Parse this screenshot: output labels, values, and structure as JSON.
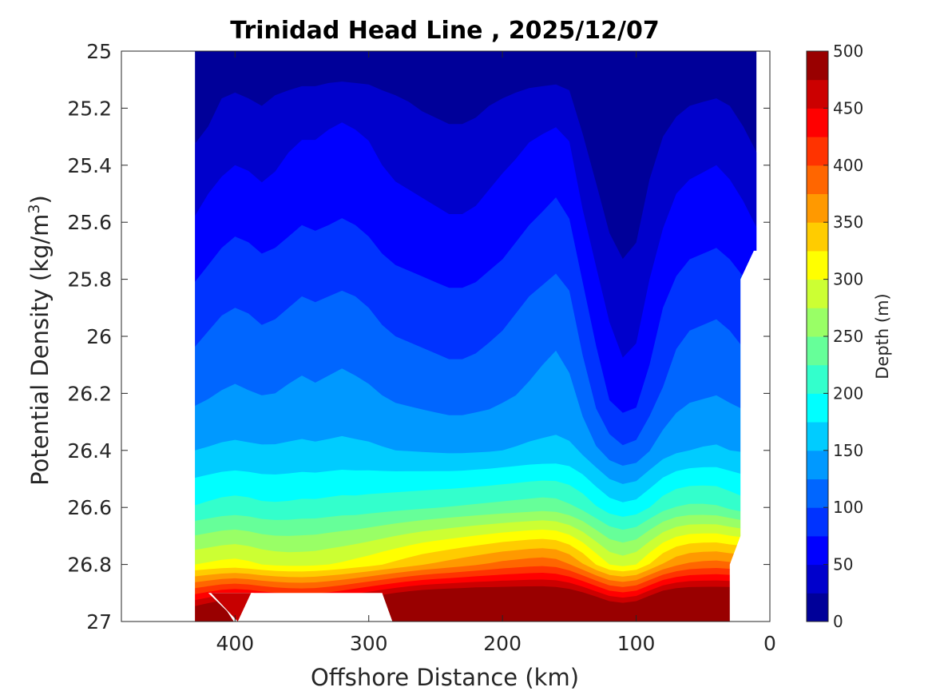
{
  "chart_data": {
    "type": "contour",
    "title": "Trinidad Head Line , 2025/12/07",
    "xlabel": "Offshore Distance (km)",
    "ylabel_main": "Potential Density (kg/m",
    "ylabel_sup": "3",
    "ylabel_close": ")",
    "xlim": [
      485,
      0
    ],
    "x_reversed": true,
    "ylim": [
      25,
      27
    ],
    "y_reversed": true,
    "x_ticks": [
      "400",
      "300",
      "200",
      "100",
      "0"
    ],
    "y_ticks": [
      "25",
      "25.2",
      "25.4",
      "25.6",
      "25.8",
      "26",
      "26.2",
      "26.4",
      "26.6",
      "26.8",
      "27"
    ],
    "colorbar": {
      "label": "Depth (m)",
      "range": [
        0,
        500
      ],
      "ticks": [
        "0",
        "50",
        "100",
        "150",
        "200",
        "250",
        "300",
        "350",
        "400",
        "450",
        "500"
      ],
      "levels": 20,
      "colormap": "jet"
    },
    "stations_km": [
      430,
      420,
      410,
      400,
      390,
      380,
      370,
      360,
      350,
      340,
      330,
      320,
      310,
      300,
      290,
      280,
      270,
      260,
      250,
      240,
      230,
      220,
      210,
      200,
      190,
      180,
      170,
      160,
      150,
      140,
      130,
      120,
      110,
      100,
      90,
      80,
      70,
      60,
      50,
      40,
      30,
      20,
      10
    ],
    "isopycnals": [
      {
        "sigma": 25.0,
        "depth": [
          1,
          1,
          1,
          1,
          1,
          1,
          1,
          1,
          1,
          1,
          1,
          1,
          1,
          1,
          1,
          1,
          1,
          1,
          1,
          1,
          1,
          1,
          1,
          1,
          1,
          1,
          1,
          1,
          1,
          1,
          1,
          1,
          1,
          1,
          1,
          1,
          1,
          1,
          1,
          1,
          1,
          1,
          1
        ]
      },
      {
        "sigma": 25.2,
        "depth": [
          10,
          18,
          30,
          34,
          30,
          26,
          32,
          36,
          40,
          40,
          44,
          46,
          44,
          42,
          36,
          32,
          28,
          24,
          22,
          20,
          20,
          22,
          26,
          30,
          34,
          38,
          40,
          42,
          36,
          16,
          6,
          2,
          1,
          2,
          8,
          16,
          22,
          26,
          28,
          30,
          26,
          18,
          8
        ]
      },
      {
        "sigma": 25.4,
        "depth": [
          34,
          40,
          46,
          50,
          48,
          44,
          48,
          54,
          58,
          58,
          60,
          62,
          60,
          56,
          50,
          46,
          44,
          42,
          40,
          38,
          38,
          40,
          44,
          48,
          52,
          58,
          62,
          66,
          60,
          36,
          20,
          10,
          6,
          10,
          22,
          34,
          42,
          46,
          48,
          50,
          46,
          40,
          30
        ]
      },
      {
        "sigma": 25.6,
        "depth": [
          52,
          60,
          66,
          70,
          68,
          64,
          66,
          70,
          74,
          72,
          74,
          76,
          74,
          70,
          64,
          60,
          58,
          56,
          54,
          52,
          52,
          54,
          58,
          62,
          68,
          74,
          78,
          82,
          76,
          54,
          36,
          22,
          16,
          20,
          34,
          48,
          58,
          62,
          64,
          66,
          62,
          56,
          48
        ]
      },
      {
        "sigma": 25.8,
        "depth": [
          74,
          80,
          86,
          90,
          88,
          84,
          86,
          90,
          94,
          92,
          94,
          96,
          94,
          90,
          84,
          80,
          78,
          76,
          74,
          72,
          72,
          74,
          78,
          82,
          88,
          94,
          98,
          102,
          96,
          74,
          54,
          38,
          30,
          34,
          50,
          66,
          76,
          82,
          84,
          86,
          82,
          76,
          70
        ]
      },
      {
        "sigma": 26.0,
        "depth": [
          96,
          102,
          108,
          110,
          108,
          104,
          106,
          110,
          114,
          112,
          114,
          116,
          114,
          110,
          104,
          100,
          98,
          96,
          94,
          92,
          92,
          94,
          98,
          102,
          108,
          114,
          118,
          122,
          116,
          94,
          72,
          54,
          44,
          48,
          66,
          84,
          96,
          102,
          104,
          106,
          102,
          96,
          92
        ]
      },
      {
        "sigma": 26.2,
        "depth": [
          118,
          122,
          126,
          128,
          126,
          124,
          125,
          128,
          130,
          128,
          130,
          132,
          130,
          128,
          124,
          120,
          118,
          116,
          114,
          112,
          112,
          114,
          116,
          120,
          124,
          128,
          132,
          134,
          130,
          112,
          90,
          70,
          60,
          64,
          84,
          102,
          114,
          120,
          122,
          124,
          120,
          116,
          112
        ]
      },
      {
        "sigma": 26.4,
        "depth": [
          150,
          152,
          154,
          155,
          154,
          153,
          153,
          154,
          155,
          154,
          155,
          156,
          155,
          154,
          152,
          150,
          149,
          148,
          147,
          146,
          146,
          147,
          148,
          150,
          152,
          154,
          155,
          156,
          154,
          144,
          128,
          112,
          104,
          108,
          124,
          138,
          146,
          150,
          152,
          153,
          150,
          148,
          146
        ]
      },
      {
        "sigma": 26.6,
        "depth": [
          202,
          206,
          210,
          212,
          210,
          206,
          205,
          206,
          208,
          208,
          210,
          212,
          212,
          214,
          216,
          218,
          220,
          222,
          224,
          226,
          228,
          230,
          232,
          234,
          236,
          238,
          240,
          238,
          230,
          218,
          202,
          188,
          182,
          186,
          200,
          216,
          226,
          230,
          230,
          228,
          220,
          212,
          210
        ]
      },
      {
        "sigma": 26.8,
        "depth": [
          300,
          304,
          308,
          310,
          306,
          300,
          296,
          294,
          294,
          296,
          300,
          304,
          310,
          316,
          324,
          332,
          340,
          348,
          354,
          360,
          366,
          372,
          378,
          384,
          388,
          392,
          394,
          390,
          376,
          352,
          324,
          300,
          292,
          300,
          326,
          352,
          370,
          380,
          384,
          386,
          382,
          380,
          380
        ]
      },
      {
        "sigma": 26.9,
        "depth": [
          420,
          430,
          440,
          444,
          440,
          432,
          426,
          422,
          420,
          422,
          428,
          436,
          446,
          456,
          466,
          476,
          484,
          490,
          494,
          496,
          498,
          500,
          500,
          500,
          500,
          500,
          500,
          498,
          492,
          478,
          458,
          436,
          428,
          436,
          462,
          486,
          496,
          500,
          500,
          500,
          500,
          500,
          500
        ]
      }
    ]
  }
}
